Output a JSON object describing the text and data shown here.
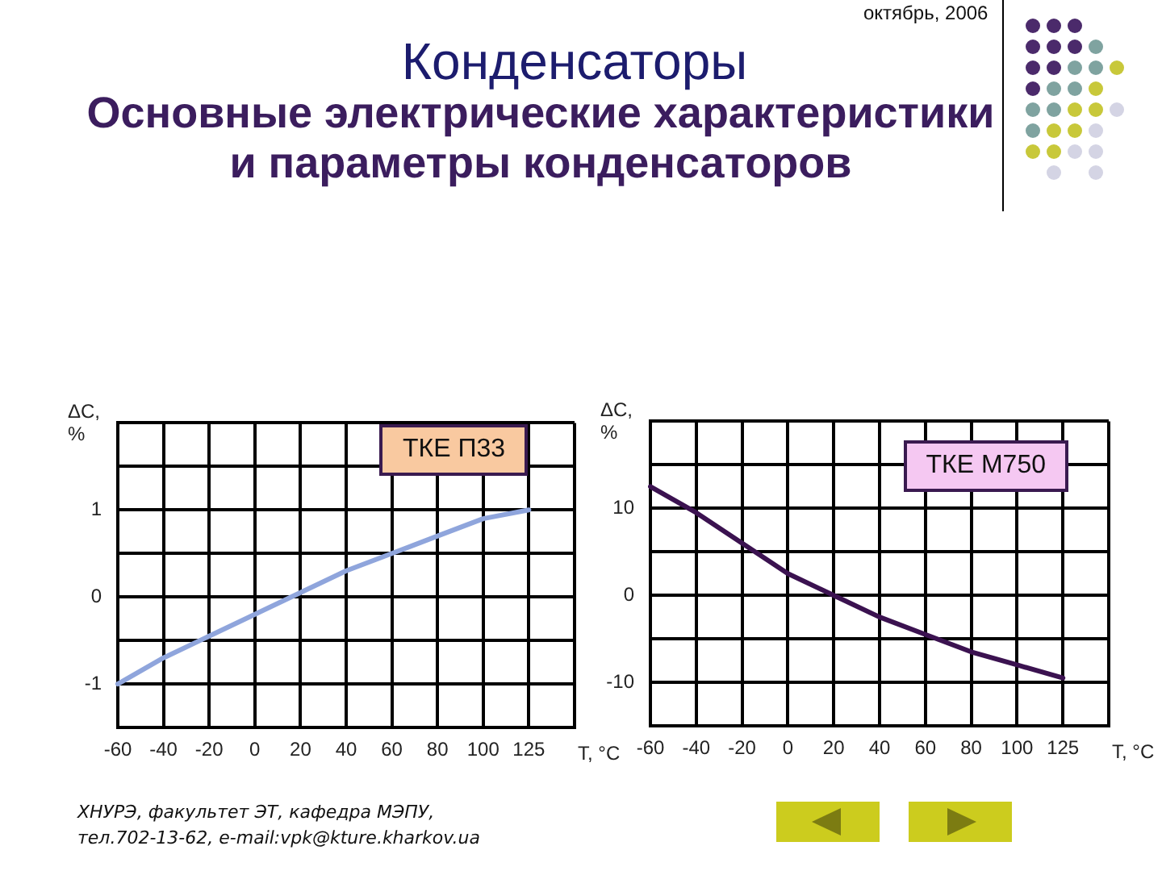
{
  "chart_data": [
    {
      "type": "other",
      "title": "Конденсаторы",
      "subtitle": "Основные электрические характеристики и параметры конденсаторов",
      "annotations": [
        "октябрь, 2006",
        "ХНУРЭ, факультет ЭТ, кафедра МЭПУ,",
        "тел.702-13-62, e-mail:vpk@kture.kharkov.ua"
      ]
    },
    {
      "type": "line",
      "title": "ТКЕ П33",
      "categories": [
        "-60",
        "-40",
        "-20",
        "0",
        "20",
        "40",
        "60",
        "80",
        "100",
        "125",
        null
      ],
      "values": [
        -1,
        -0.7,
        -0.45,
        -0.2,
        0.05,
        0.3,
        0.5,
        0.7,
        0.9,
        1,
        null
      ],
      "color": "#8fa5dc",
      "xlabel": "T, °C",
      "ylabel": "ΔC, %",
      "ylim": [
        -1.5,
        2
      ],
      "yticks": [
        {
          "value": -1.5,
          "label": null
        },
        -1,
        {
          "value": -0.5,
          "label": null
        },
        0,
        {
          "value": 0.5,
          "label": null
        },
        1,
        {
          "value": 1.5,
          "label": null
        },
        {
          "value": 2,
          "label": null
        }
      ],
      "grid": true,
      "marker": "none"
    },
    {
      "type": "line",
      "title": "ТКЕ М750",
      "categories": [
        "-60",
        "-40",
        "-20",
        "0",
        "20",
        "40",
        "60",
        "80",
        "100",
        "125",
        null
      ],
      "values": [
        12.5,
        9.5,
        6,
        2.5,
        0,
        -2.5,
        -4.5,
        -6.5,
        -8,
        -9.5,
        null
      ],
      "color": "#3b1250",
      "xlabel": "T, °C",
      "ylabel": "ΔC, %",
      "ylim": [
        -15,
        20
      ],
      "yticks": [
        {
          "value": -15,
          "label": null
        },
        -10,
        {
          "value": -5,
          "label": null
        },
        0,
        {
          "value": 5,
          "label": null
        },
        10,
        {
          "value": 15,
          "label": null
        },
        {
          "value": 20,
          "label": null
        }
      ],
      "grid": true,
      "marker": "none"
    }
  ]
}
